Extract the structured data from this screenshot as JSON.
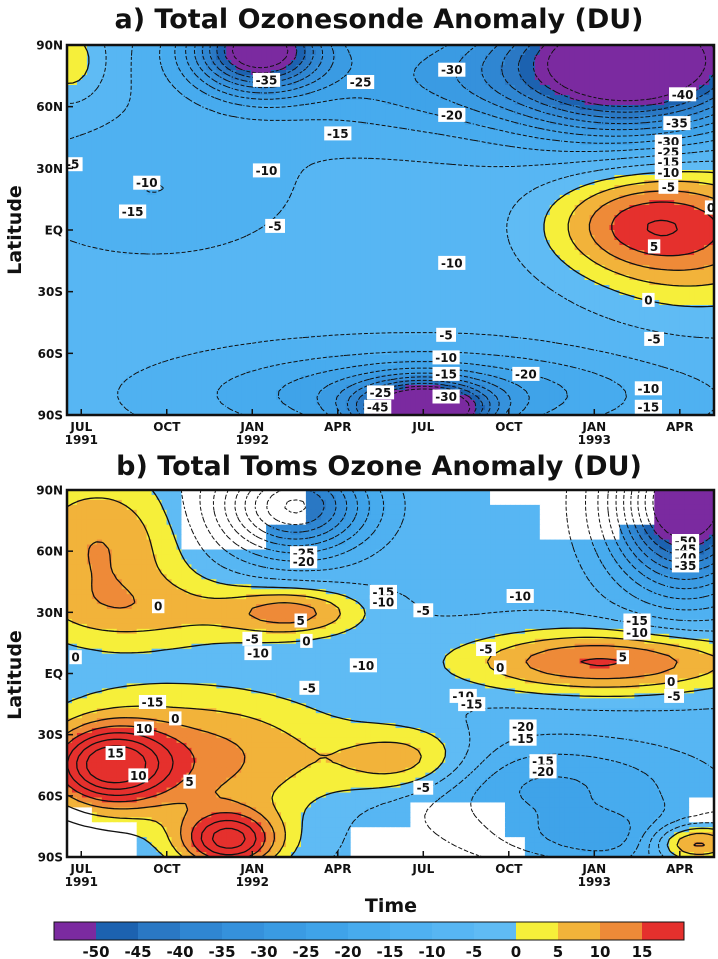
{
  "chart_data": {
    "type": "heatmap",
    "palette": [
      {
        "min": -55,
        "max": -50,
        "color": "#7b2aa0"
      },
      {
        "min": -50,
        "max": -45,
        "color": "#1c62b0"
      },
      {
        "min": -45,
        "max": -40,
        "color": "#2a78c4"
      },
      {
        "min": -40,
        "max": -35,
        "color": "#2f86d2"
      },
      {
        "min": -35,
        "max": -30,
        "color": "#3591dc"
      },
      {
        "min": -30,
        "max": -25,
        "color": "#3a9be3"
      },
      {
        "min": -25,
        "max": -20,
        "color": "#3fa3e9"
      },
      {
        "min": -20,
        "max": -15,
        "color": "#47abee"
      },
      {
        "min": -15,
        "max": -10,
        "color": "#4fb1f1"
      },
      {
        "min": -10,
        "max": -5,
        "color": "#57b6f3"
      },
      {
        "min": -5,
        "max": 0,
        "color": "#5fbbf4"
      },
      {
        "min": 0,
        "max": 5,
        "color": "#f6ef3a"
      },
      {
        "min": 5,
        "max": 10,
        "color": "#f2b33a"
      },
      {
        "min": 10,
        "max": 15,
        "color": "#ee8a38"
      },
      {
        "min": 15,
        "max": 20,
        "color": "#e5302d"
      }
    ],
    "colorbar": {
      "ticks": [
        "-50",
        "-45",
        "-40",
        "-35",
        "-30",
        "-25",
        "-20",
        "-15",
        "-10",
        "-5",
        "0",
        "5",
        "10",
        "15"
      ],
      "colors": [
        "#7b2aa0",
        "#1c62b0",
        "#2a78c4",
        "#2f86d2",
        "#3591dc",
        "#3a9be3",
        "#3fa3e9",
        "#47abee",
        "#4fb1f1",
        "#57b6f3",
        "#5fbbf4",
        "#f6ef3a",
        "#f2b33a",
        "#ee8a38",
        "#e5302d"
      ]
    },
    "x_ticks": [
      {
        "m": 0,
        "label": "JUL",
        "year": "1991"
      },
      {
        "m": 3,
        "label": "OCT",
        "year": ""
      },
      {
        "m": 6,
        "label": "JAN",
        "year": "1992"
      },
      {
        "m": 9,
        "label": "APR",
        "year": ""
      },
      {
        "m": 12,
        "label": "JUL",
        "year": ""
      },
      {
        "m": 15,
        "label": "OCT",
        "year": ""
      },
      {
        "m": 18,
        "label": "JAN",
        "year": "1993"
      },
      {
        "m": 21,
        "label": "APR",
        "year": ""
      }
    ],
    "y_ticks": [
      {
        "lat": 90,
        "label": "90N"
      },
      {
        "lat": 60,
        "label": "60N"
      },
      {
        "lat": 30,
        "label": "30N"
      },
      {
        "lat": 0,
        "label": "EQ"
      },
      {
        "lat": -30,
        "label": "30S"
      },
      {
        "lat": -60,
        "label": "60S"
      },
      {
        "lat": -90,
        "label": "90S"
      }
    ],
    "xlim": [
      -0.5,
      22.2
    ],
    "ylim": [
      -90,
      90
    ],
    "ylabel": "Latitude",
    "xlabel": "Time",
    "panels": [
      {
        "title": "a) Total Ozonesonde Anomaly (DU)",
        "base": -8,
        "bumps": [
          {
            "x": 6.2,
            "lat": 88,
            "amp": -50,
            "sx": 1.6,
            "sy": 14
          },
          {
            "x": 19.5,
            "lat": 84,
            "amp": -55,
            "sx": 3.0,
            "sy": 24
          },
          {
            "x": 12.0,
            "lat": -88,
            "amp": -55,
            "sx": 1.5,
            "sy": 9
          },
          {
            "x": 12.0,
            "lat": -80,
            "amp": -20,
            "sx": 5.0,
            "sy": 14
          },
          {
            "x": 19.6,
            "lat": 3,
            "amp": 17,
            "sx": 2.3,
            "sy": 17
          },
          {
            "x": 22.0,
            "lat": -4,
            "amp": 15,
            "sx": 3.0,
            "sy": 28
          },
          {
            "x": -0.4,
            "lat": 82,
            "amp": 12,
            "sx": 0.9,
            "sy": 14
          },
          {
            "x": 2.5,
            "lat": 20,
            "amp": -7,
            "sx": 3.0,
            "sy": 20
          },
          {
            "x": 14.5,
            "lat": 75,
            "amp": -17,
            "sx": 6.0,
            "sy": 20
          }
        ],
        "labels": [
          {
            "x": 6.5,
            "lat": 73,
            "text": "-35"
          },
          {
            "x": 9.8,
            "lat": 72,
            "text": "-25"
          },
          {
            "x": 13.0,
            "lat": 78,
            "text": "-30"
          },
          {
            "x": 9.0,
            "lat": 47,
            "text": "-15"
          },
          {
            "x": 13.0,
            "lat": 56,
            "text": "-20"
          },
          {
            "x": 6.5,
            "lat": 29,
            "text": "-10"
          },
          {
            "x": 2.3,
            "lat": 23,
            "text": "-10"
          },
          {
            "x": 1.8,
            "lat": 9,
            "text": "-15"
          },
          {
            "x": 6.8,
            "lat": 2,
            "text": "-5"
          },
          {
            "x": -0.3,
            "lat": 32,
            "text": "-5"
          },
          {
            "x": 13.0,
            "lat": -16,
            "text": "-10"
          },
          {
            "x": 12.8,
            "lat": -51,
            "text": "-5"
          },
          {
            "x": 12.8,
            "lat": -62,
            "text": "-10"
          },
          {
            "x": 12.8,
            "lat": -70,
            "text": "-15"
          },
          {
            "x": 15.6,
            "lat": -70,
            "text": "-20"
          },
          {
            "x": 10.5,
            "lat": -79,
            "text": "-25"
          },
          {
            "x": 12.8,
            "lat": -81,
            "text": "-30"
          },
          {
            "x": 10.4,
            "lat": -86,
            "text": "-45"
          },
          {
            "x": 21.1,
            "lat": 66,
            "text": "-40"
          },
          {
            "x": 20.9,
            "lat": 52,
            "text": "-35"
          },
          {
            "x": 20.6,
            "lat": 43,
            "text": "-30"
          },
          {
            "x": 20.6,
            "lat": 38,
            "text": "-25"
          },
          {
            "x": 20.6,
            "lat": 33,
            "text": "-15"
          },
          {
            "x": 20.6,
            "lat": 28,
            "text": "-10"
          },
          {
            "x": 20.6,
            "lat": 21,
            "text": "-5"
          },
          {
            "x": 22.1,
            "lat": 11,
            "text": "0"
          },
          {
            "x": 20.1,
            "lat": -8,
            "text": "5"
          },
          {
            "x": 19.9,
            "lat": -34,
            "text": "0"
          },
          {
            "x": 20.1,
            "lat": -53,
            "text": "-5"
          },
          {
            "x": 19.9,
            "lat": -77,
            "text": "-10"
          },
          {
            "x": 19.9,
            "lat": -86,
            "text": "-15"
          }
        ]
      },
      {
        "title": "b) Total Toms Ozone Anomaly (DU)",
        "base": -6,
        "bumps": [
          {
            "x": 0.6,
            "lat": 62,
            "amp": 16,
            "sx": 2.2,
            "sy": 28
          },
          {
            "x": 3.5,
            "lat": 30,
            "amp": 9,
            "sx": 3.5,
            "sy": 12
          },
          {
            "x": 7.5,
            "lat": 30,
            "amp": 14,
            "sx": 1.6,
            "sy": 8
          },
          {
            "x": 1.0,
            "lat": -45,
            "amp": 30,
            "sx": 1.4,
            "sy": 13
          },
          {
            "x": 4.0,
            "lat": -42,
            "amp": 18,
            "sx": 3.8,
            "sy": 24
          },
          {
            "x": 5.2,
            "lat": -82,
            "amp": 30,
            "sx": 1.2,
            "sy": 10
          },
          {
            "x": 11.5,
            "lat": -44,
            "amp": 16,
            "sx": 1.8,
            "sy": 12
          },
          {
            "x": 19.0,
            "lat": 6,
            "amp": 18,
            "sx": 3.5,
            "sy": 11
          },
          {
            "x": 21.5,
            "lat": -83,
            "amp": 28,
            "sx": 1.2,
            "sy": 7
          },
          {
            "x": 21.2,
            "lat": 84,
            "amp": -60,
            "sx": 1.8,
            "sy": 28
          },
          {
            "x": 7.5,
            "lat": 82,
            "amp": -40,
            "sx": 1.8,
            "sy": 16
          },
          {
            "x": 16.5,
            "lat": 5,
            "amp": 5,
            "sx": 3.0,
            "sy": 10
          },
          {
            "x": 16.0,
            "lat": -55,
            "amp": -15,
            "sx": 4.0,
            "sy": 16
          },
          {
            "x": 19.0,
            "lat": -82,
            "amp": -15,
            "sx": 3.0,
            "sy": 10
          }
        ],
        "gaps": [
          {
            "x0": 3.6,
            "x1": 6.5,
            "lat0": 60,
            "lat1": 90
          },
          {
            "x0": 6.5,
            "x1": 7.8,
            "lat0": 74,
            "lat1": 90
          },
          {
            "x0": 14.3,
            "x1": 16.1,
            "lat0": 83,
            "lat1": 90
          },
          {
            "x0": 16.1,
            "x1": 18.8,
            "lat0": 65,
            "lat1": 90
          },
          {
            "x0": 18.8,
            "x1": 20.1,
            "lat0": 72,
            "lat1": 90
          },
          {
            "x0": -0.5,
            "x1": 0.3,
            "lat0": -90,
            "lat1": -66
          },
          {
            "x0": 0.3,
            "x1": 1.9,
            "lat0": -90,
            "lat1": -72
          },
          {
            "x0": 9.4,
            "x1": 11.6,
            "lat0": -90,
            "lat1": -76
          },
          {
            "x0": 11.6,
            "x1": 14.9,
            "lat0": -90,
            "lat1": -64
          },
          {
            "x0": 14.9,
            "x1": 15.6,
            "lat0": -90,
            "lat1": -80
          },
          {
            "x0": 21.4,
            "x1": 22.2,
            "lat0": -73,
            "lat1": -62
          }
        ],
        "labels": [
          {
            "x": 7.8,
            "lat": 59,
            "text": "-25"
          },
          {
            "x": 7.8,
            "lat": 55,
            "text": "-20"
          },
          {
            "x": 10.6,
            "lat": 40,
            "text": "-15"
          },
          {
            "x": 10.6,
            "lat": 35,
            "text": "-10"
          },
          {
            "x": 12.0,
            "lat": 31,
            "text": "-5"
          },
          {
            "x": 15.4,
            "lat": 38,
            "text": "-10"
          },
          {
            "x": 2.7,
            "lat": 33,
            "text": "0"
          },
          {
            "x": 7.7,
            "lat": 26,
            "text": "5"
          },
          {
            "x": 7.9,
            "lat": 16,
            "text": "0"
          },
          {
            "x": 6.0,
            "lat": 17,
            "text": "-5"
          },
          {
            "x": 6.2,
            "lat": 10,
            "text": "-10"
          },
          {
            "x": -0.2,
            "lat": 8,
            "text": "0"
          },
          {
            "x": 9.9,
            "lat": 4,
            "text": "-10"
          },
          {
            "x": 8.0,
            "lat": -7,
            "text": "-5"
          },
          {
            "x": 3.3,
            "lat": -22,
            "text": "0"
          },
          {
            "x": 2.5,
            "lat": -14,
            "text": "-15"
          },
          {
            "x": 2.2,
            "lat": -27,
            "text": "10"
          },
          {
            "x": 1.2,
            "lat": -39,
            "text": "15"
          },
          {
            "x": 2.0,
            "lat": -50,
            "text": "10"
          },
          {
            "x": 3.8,
            "lat": -53,
            "text": "5"
          },
          {
            "x": 12.0,
            "lat": -56,
            "text": "-5"
          },
          {
            "x": 13.4,
            "lat": -11,
            "text": "-10"
          },
          {
            "x": 13.7,
            "lat": -15,
            "text": "-15"
          },
          {
            "x": 14.2,
            "lat": 12,
            "text": "-5"
          },
          {
            "x": 14.7,
            "lat": 3,
            "text": "0"
          },
          {
            "x": 15.5,
            "lat": -26,
            "text": "-20"
          },
          {
            "x": 15.5,
            "lat": -32,
            "text": "-15"
          },
          {
            "x": 16.2,
            "lat": -43,
            "text": "-15"
          },
          {
            "x": 16.2,
            "lat": -48,
            "text": "-20"
          },
          {
            "x": 19.5,
            "lat": 26,
            "text": "-15"
          },
          {
            "x": 19.5,
            "lat": 20,
            "text": "-10"
          },
          {
            "x": 19.0,
            "lat": 8,
            "text": "5"
          },
          {
            "x": 20.7,
            "lat": -4,
            "text": "0"
          },
          {
            "x": 20.8,
            "lat": -11,
            "text": "-5"
          },
          {
            "x": 21.2,
            "lat": 65,
            "text": "-50"
          },
          {
            "x": 21.2,
            "lat": 61,
            "text": "-45"
          },
          {
            "x": 21.2,
            "lat": 57,
            "text": "-40"
          },
          {
            "x": 21.2,
            "lat": 53,
            "text": "-35"
          }
        ]
      }
    ]
  }
}
